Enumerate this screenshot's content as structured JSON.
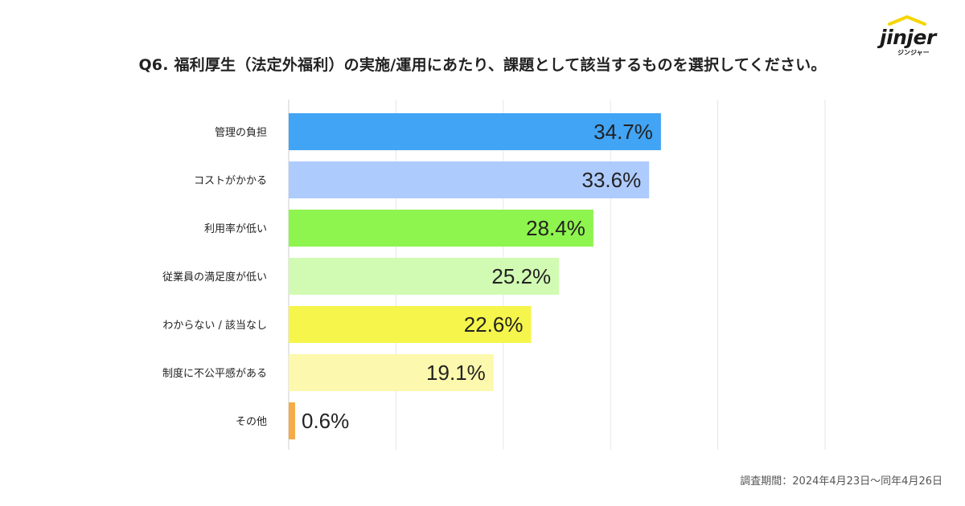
{
  "chart_data": {
    "type": "bar",
    "orientation": "horizontal",
    "title": "Q6. 福利厚生（法定外福利）の実施/運用にあたり、課題として該当するものを選択してください。",
    "categories": [
      "管理の負担",
      "コストがかかる",
      "利用率が低い",
      "従業員の満足度が低い",
      "わからない / 該当なし",
      "制度に不公平感がある",
      "その他"
    ],
    "values": [
      34.7,
      33.6,
      28.4,
      25.2,
      22.6,
      19.1,
      0.6
    ],
    "value_labels": [
      "34.7%",
      "33.6%",
      "28.4%",
      "25.2%",
      "22.6%",
      "19.1%",
      "0.6%"
    ],
    "colors": [
      "#41a4f4",
      "#aecbfd",
      "#8ef44e",
      "#d1fbb2",
      "#f5f54c",
      "#fcf8ad",
      "#f4ab48"
    ],
    "xlim": [
      0,
      50
    ],
    "grid": true,
    "xlabel": "",
    "ylabel": ""
  },
  "logo": {
    "wordmark": "jinjer",
    "subtext": "ジンジャー"
  },
  "footnote": "調査期間：2024年4月23日〜同年4月26日"
}
